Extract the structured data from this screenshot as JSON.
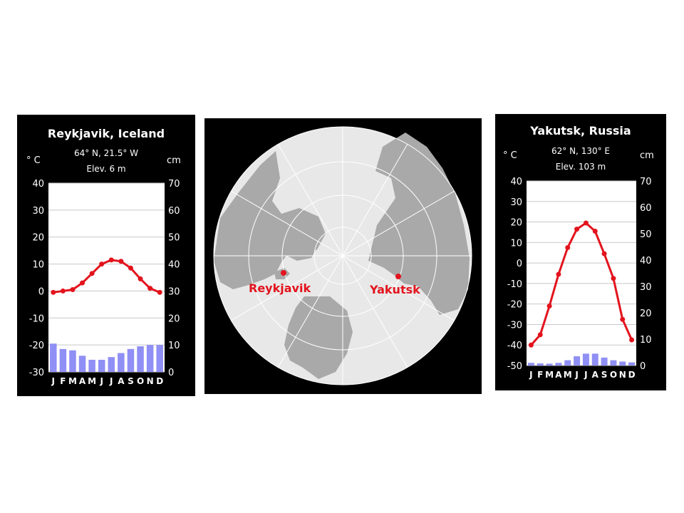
{
  "colors": {
    "background": "#ffffff",
    "panel": "#000000",
    "temperature_line": "#e3131d",
    "precipitation_bar": "#8f8ff5",
    "ocean": "#e8e8e8",
    "land": "#a9a9a9",
    "map_label": "#e3131d"
  },
  "chart_data": [
    {
      "type": "bar+line",
      "title": "Reykjavik, Iceland",
      "coordinates": "64° N, 21.5° W",
      "elevation": "Elev. 6 m",
      "left_axis_unit": "° C",
      "right_axis_unit": "cm",
      "months": [
        "J",
        "F",
        "M",
        "A",
        "M",
        "J",
        "J",
        "A",
        "S",
        "O",
        "N",
        "D"
      ],
      "temperature_ticks": [
        "40",
        "30",
        "20",
        "10",
        "0",
        "-10",
        "-20",
        "-30"
      ],
      "precipitation_ticks": [
        "70",
        "60",
        "50",
        "40",
        "30",
        "20",
        "10",
        "0"
      ],
      "temperature_range": [
        -30,
        40
      ],
      "precipitation_range": [
        0,
        70
      ],
      "temperature": [
        -0.5,
        0.0,
        0.5,
        3.0,
        6.5,
        10.0,
        11.5,
        11.0,
        8.5,
        4.5,
        1.0,
        -0.5
      ],
      "precipitation": [
        10.5,
        8.5,
        8.0,
        6.0,
        4.5,
        4.5,
        5.5,
        7.0,
        8.5,
        9.5,
        10.0,
        10.0
      ],
      "grid": true
    },
    {
      "type": "bar+line",
      "title": "Yakutsk, Russia",
      "coordinates": "62° N, 130° E",
      "elevation": "Elev. 103 m",
      "left_axis_unit": "° C",
      "right_axis_unit": "cm",
      "months": [
        "J",
        "F",
        "M",
        "A",
        "M",
        "J",
        "J",
        "A",
        "S",
        "O",
        "N",
        "D"
      ],
      "temperature_ticks": [
        "40",
        "30",
        "20",
        "10",
        "0",
        "-10",
        "-20",
        "-30",
        "-40",
        "-50"
      ],
      "precipitation_ticks": [
        "70",
        "60",
        "50",
        "40",
        "30",
        "20",
        "10",
        "0"
      ],
      "temperature_range": [
        -50,
        40
      ],
      "precipitation_range": [
        0,
        70
      ],
      "temperature": [
        -40.0,
        -35.0,
        -21.0,
        -5.5,
        7.5,
        16.5,
        19.5,
        15.5,
        4.5,
        -7.5,
        -27.5,
        -37.5
      ],
      "precipitation": [
        1.0,
        0.8,
        0.7,
        1.0,
        2.0,
        3.5,
        4.5,
        4.5,
        3.0,
        2.0,
        1.5,
        1.2
      ],
      "grid": true
    }
  ],
  "map": {
    "labels": [
      {
        "name": "Reykjavik",
        "text": "Reykjavik"
      },
      {
        "name": "Yakutsk",
        "text": "Yakutsk"
      }
    ]
  }
}
